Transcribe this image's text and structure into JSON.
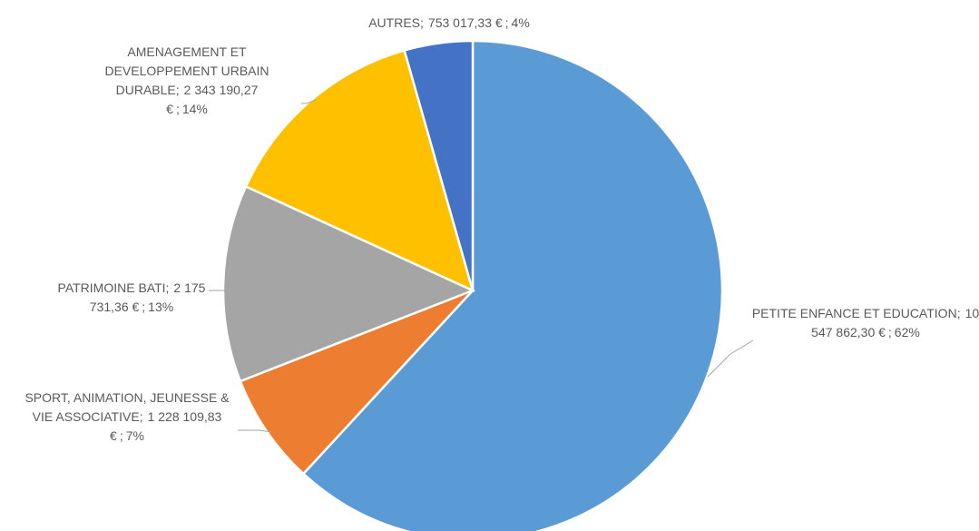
{
  "chart_data": {
    "type": "pie",
    "categories": [
      "PETITE ENFANCE ET EDUCATION",
      "SPORT, ANIMATION, JEUNESSE & VIE ASSOCIATIVE",
      "PATRIMOINE BATI",
      "AMENAGEMENT ET DEVELOPPEMENT URBAIN DURABLE",
      "AUTRES"
    ],
    "values": [
      10547862.3,
      1228109.83,
      2175731.36,
      2343190.27,
      753017.33
    ],
    "value_labels": [
      "10 547 862,30 €",
      "1 228 109,83 €",
      "2 175 731,36 €",
      "2 343 190,27 €",
      "753 017,33 €"
    ],
    "percent_labels": [
      "62%",
      "7%",
      "13%",
      "14%",
      "4%"
    ],
    "separator": ";",
    "colors": [
      "#5b9bd5",
      "#ed7d31",
      "#a5a5a5",
      "#ffc000",
      "#4472c4"
    ]
  }
}
